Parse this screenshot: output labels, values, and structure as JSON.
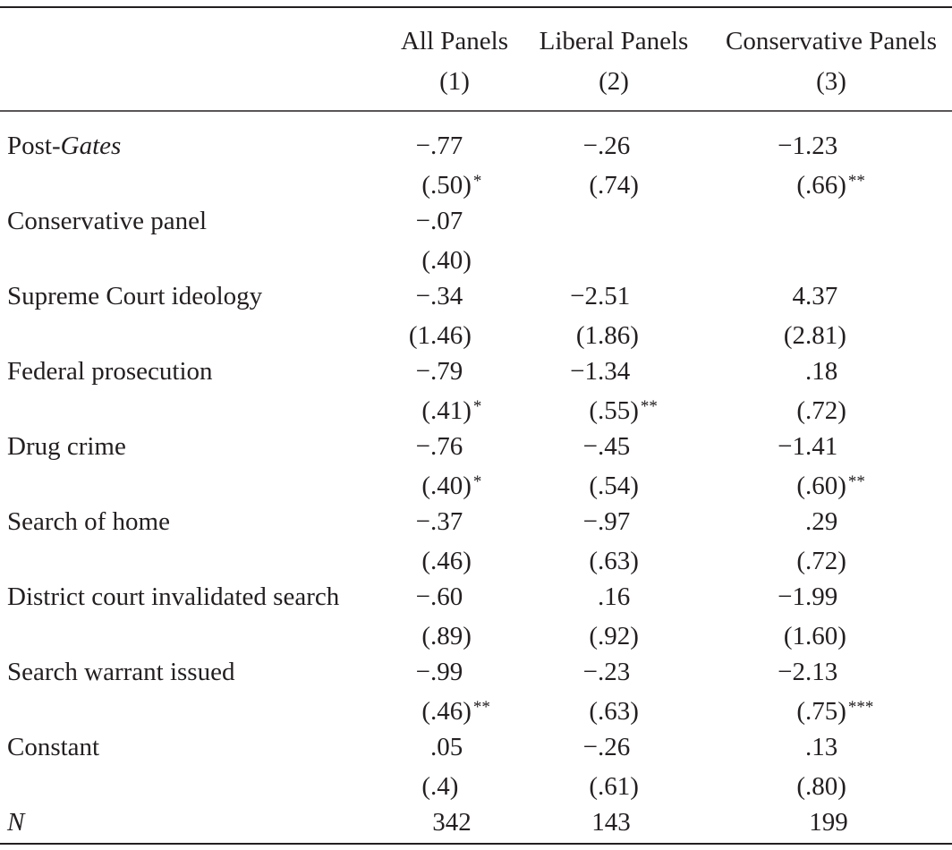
{
  "table": {
    "columns": [
      {
        "name": "All Panels",
        "number": "(1)"
      },
      {
        "name": "Liberal Panels",
        "number": "(2)"
      },
      {
        "name": "Conservative Panels",
        "number": "(3)"
      }
    ],
    "rows": [
      {
        "label": [
          "Post-",
          "Gates"
        ],
        "cells": [
          {
            "coef": "−.77",
            "se": "(.50)",
            "stars": "*"
          },
          {
            "coef": "−.26",
            "se": "(.74)"
          },
          {
            "coef": "−1.23",
            "se": "(.66)",
            "stars": "**"
          }
        ]
      },
      {
        "label": [
          "Conservative panel"
        ],
        "cells": [
          {
            "coef": "−.07",
            "se": "(.40)"
          },
          null,
          null
        ]
      },
      {
        "label": [
          "Supreme Court ideology"
        ],
        "cells": [
          {
            "coef": "−.34",
            "se": "(1.46)"
          },
          {
            "coef": "−2.51",
            "se": "(1.86)"
          },
          {
            "coef": "4.37",
            "se": "(2.81)"
          }
        ]
      },
      {
        "label": [
          "Federal prosecution"
        ],
        "cells": [
          {
            "coef": "−.79",
            "se": "(.41)",
            "stars": "*"
          },
          {
            "coef": "−1.34",
            "se": "(.55)",
            "stars": "**"
          },
          {
            "coef": ".18",
            "se": "(.72)"
          }
        ]
      },
      {
        "label": [
          "Drug crime"
        ],
        "cells": [
          {
            "coef": "−.76",
            "se": "(.40)",
            "stars": "*"
          },
          {
            "coef": "−.45",
            "se": "(.54)"
          },
          {
            "coef": "−1.41",
            "se": "(.60)",
            "stars": "**"
          }
        ]
      },
      {
        "label": [
          "Search of home"
        ],
        "cells": [
          {
            "coef": "−.37",
            "se": "(.46)"
          },
          {
            "coef": "−.97",
            "se": "(.63)"
          },
          {
            "coef": ".29",
            "se": "(.72)"
          }
        ]
      },
      {
        "label": [
          "District court invalidated search"
        ],
        "cells": [
          {
            "coef": "−.60",
            "se": "(.89)"
          },
          {
            "coef": ".16",
            "se": "(.92)"
          },
          {
            "coef": "−1.99",
            "se": "(1.60)"
          }
        ]
      },
      {
        "label": [
          "Search warrant issued"
        ],
        "cells": [
          {
            "coef": "−.99",
            "se": "(.46)",
            "stars": "**"
          },
          {
            "coef": "−.23",
            "se": "(.63)"
          },
          {
            "coef": "−2.13",
            "se": "(.75)",
            "stars": "***"
          }
        ]
      },
      {
        "label": [
          "Constant"
        ],
        "cells": [
          {
            "coef": ".05",
            "se": "(.4)"
          },
          {
            "coef": "−.26",
            "se": "(.61)"
          },
          {
            "coef": ".13",
            "se": "(.80)"
          }
        ]
      }
    ],
    "n_row": {
      "label": "N",
      "values": [
        342,
        143,
        199
      ]
    }
  }
}
